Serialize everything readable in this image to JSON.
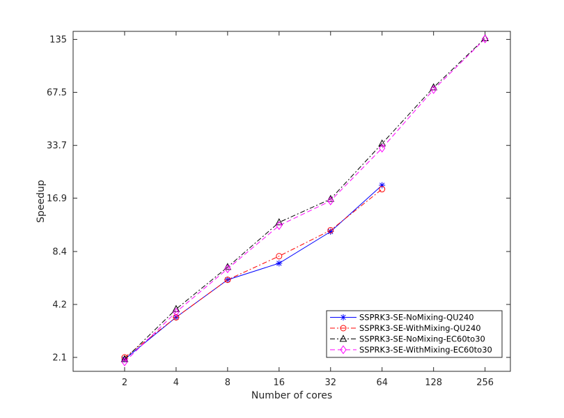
{
  "chart_data": {
    "type": "line",
    "title": "",
    "xlabel": "Number of cores",
    "ylabel": "Speedup",
    "x_scale": "log2",
    "y_scale": "log",
    "x_ticks": [
      2,
      4,
      8,
      16,
      32,
      64,
      128,
      256
    ],
    "x_tick_labels": [
      "2",
      "4",
      "8",
      "16",
      "32",
      "64",
      "128",
      "256"
    ],
    "y_ticks": [
      2.1,
      4.2,
      8.4,
      16.9,
      33.7,
      67.5,
      135
    ],
    "y_tick_labels": [
      "2.1",
      "4.2",
      "8.4",
      "16.9",
      "33.7",
      "67.5",
      "135"
    ],
    "xlim": [
      1,
      360
    ],
    "ylim": [
      1.75,
      150
    ],
    "grid": false,
    "legend_position": "bottom-right",
    "series": [
      {
        "name": "SSPRK3-SE-NoMixing-QU240",
        "color": "#0000ff",
        "line_style": "solid",
        "marker": "asterisk",
        "x": [
          2,
          4,
          8,
          16,
          32,
          64
        ],
        "y": [
          2.05,
          3.55,
          5.8,
          7.2,
          10.9,
          20.0
        ]
      },
      {
        "name": "SSPRK3-SE-WithMixing-QU240",
        "color": "#ff0000",
        "line_style": "dashdot",
        "marker": "circle",
        "x": [
          2,
          4,
          8,
          16,
          32,
          64
        ],
        "y": [
          2.1,
          3.55,
          5.8,
          7.9,
          11.1,
          19.0
        ]
      },
      {
        "name": "SSPRK3-SE-NoMixing-EC60to30",
        "color": "#000000",
        "line_style": "dashdot",
        "marker": "triangle",
        "x": [
          2,
          4,
          8,
          16,
          32,
          64,
          128,
          256
        ],
        "y": [
          2.05,
          3.95,
          6.85,
          12.3,
          16.7,
          34.5,
          72.0,
          137.0
        ]
      },
      {
        "name": "SSPRK3-SE-WithMixing-EC60to30",
        "color": "#ff00ff",
        "line_style": "dashed",
        "marker": "diamond",
        "x": [
          2,
          4,
          8,
          16,
          32,
          64,
          128,
          256
        ],
        "y": [
          1.98,
          3.8,
          6.7,
          11.8,
          16.3,
          32.5,
          70.0,
          136.0
        ]
      }
    ]
  }
}
